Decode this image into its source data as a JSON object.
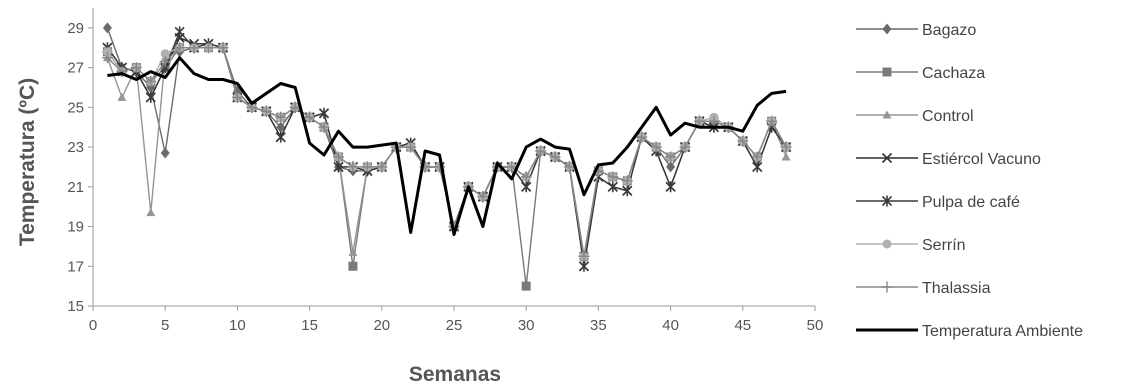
{
  "chart_data": {
    "type": "line",
    "title": "",
    "xlabel": "Semanas",
    "ylabel": "Temperatura (ºC)",
    "xlim": [
      0,
      50
    ],
    "ylim": [
      15,
      30
    ],
    "x_ticks": [
      0,
      5,
      10,
      15,
      20,
      25,
      30,
      35,
      40,
      45,
      50
    ],
    "y_ticks": [
      15,
      17,
      19,
      21,
      23,
      25,
      27,
      29
    ],
    "grid": false,
    "legend_position": "right",
    "x": [
      1,
      2,
      3,
      4,
      5,
      6,
      7,
      8,
      9,
      10,
      11,
      12,
      13,
      14,
      15,
      16,
      17,
      18,
      19,
      20,
      21,
      22,
      23,
      24,
      25,
      26,
      27,
      28,
      29,
      30,
      31,
      32,
      33,
      34,
      35,
      36,
      37,
      38,
      39,
      40,
      41,
      42,
      43,
      44,
      45,
      46,
      47,
      48
    ],
    "series": [
      {
        "name": "Bagazo",
        "marker": "diamond",
        "color": "#6b6b6b",
        "values": [
          29,
          27,
          26.8,
          26,
          22.7,
          27.8,
          28,
          28,
          28,
          25.8,
          25,
          24.8,
          24,
          25,
          24.5,
          24,
          22,
          21.8,
          21.8,
          22,
          23,
          23,
          22,
          22,
          19,
          21,
          20.5,
          22,
          22,
          21.5,
          22.8,
          22.5,
          22,
          17.5,
          21.8,
          21.5,
          21.3,
          23.5,
          23,
          22,
          23,
          24.3,
          24.3,
          24,
          23.3,
          22.5,
          24.3,
          23
        ]
      },
      {
        "name": "Cachaza",
        "marker": "square",
        "color": "#7a7a7a",
        "values": [
          27.8,
          26.8,
          27,
          26.3,
          27,
          28,
          28,
          28,
          28,
          25.5,
          25,
          24.8,
          24.5,
          25,
          24.5,
          24,
          22.5,
          17,
          22,
          22,
          23,
          23,
          22,
          22,
          19,
          21,
          20.5,
          22,
          22,
          16,
          22.8,
          22.5,
          22,
          17.5,
          21.8,
          21.5,
          21.3,
          23.5,
          23,
          22.5,
          23,
          24.3,
          24.3,
          24,
          23.3,
          22.5,
          24.3,
          23
        ]
      },
      {
        "name": "Control",
        "marker": "triangle",
        "color": "#959595",
        "values": [
          27.5,
          25.5,
          27,
          19.7,
          27.5,
          28,
          28,
          28,
          28,
          25.5,
          25,
          24.8,
          24.5,
          25,
          24.5,
          24,
          22.5,
          17.7,
          22,
          22,
          23,
          23,
          22,
          22,
          19,
          21,
          20.5,
          22,
          22,
          21.5,
          22.8,
          22.5,
          22,
          17.5,
          21.8,
          21.5,
          21.3,
          23.5,
          23,
          22.5,
          23,
          24.3,
          24.3,
          24,
          23.3,
          22.5,
          24.3,
          22.5
        ]
      },
      {
        "name": "Estiércol Vacuno",
        "marker": "x",
        "color": "#2f2f2f",
        "values": [
          28,
          27,
          26.8,
          25.5,
          27,
          28.5,
          28.2,
          28.2,
          28,
          25.5,
          25,
          24.8,
          23.5,
          25,
          24.5,
          24.7,
          22,
          22,
          21.8,
          22,
          23,
          23.2,
          22,
          22,
          19,
          21,
          20.5,
          22,
          22,
          21,
          22.8,
          22.5,
          22,
          17,
          21.5,
          21,
          20.8,
          23.5,
          22.8,
          21,
          23,
          24.3,
          24,
          24,
          23.3,
          22,
          24,
          23
        ]
      },
      {
        "name": "Pulpa de café",
        "marker": "star",
        "color": "#3a3a3a",
        "values": [
          28,
          27,
          26.8,
          25.5,
          27,
          28.8,
          28,
          28.2,
          28,
          25.5,
          25,
          24.8,
          23.5,
          25,
          24.5,
          24.7,
          22,
          22,
          21.8,
          22,
          23,
          23.2,
          22,
          22,
          19,
          21,
          20.5,
          22,
          22,
          21,
          22.8,
          22.5,
          22,
          17,
          21.5,
          21,
          20.8,
          23.5,
          22.8,
          21,
          23,
          24.3,
          24,
          24,
          23.3,
          22,
          24,
          23
        ]
      },
      {
        "name": "Serrín",
        "marker": "circle",
        "color": "#b0b0b0",
        "values": [
          27.8,
          26.8,
          27,
          26.3,
          27.7,
          28,
          28,
          28,
          28,
          25.5,
          25,
          24.8,
          24.5,
          25,
          24.5,
          24,
          22.5,
          22,
          22,
          22,
          23,
          23,
          22,
          22,
          19,
          21,
          20.5,
          22,
          22,
          21.5,
          22.8,
          22.5,
          22,
          17.5,
          21.8,
          21.5,
          21.3,
          23.5,
          23,
          22.5,
          23,
          24.3,
          24.5,
          24,
          23.3,
          22.5,
          24.3,
          23
        ]
      },
      {
        "name": "Thalassia",
        "marker": "plus",
        "color": "#888888",
        "values": [
          27.5,
          26.8,
          27,
          26.3,
          27.3,
          28,
          28,
          28,
          28,
          25.5,
          25,
          24.8,
          24.5,
          25,
          24.5,
          24,
          22.5,
          22,
          22,
          22,
          23,
          23,
          22,
          22,
          19,
          21,
          20.5,
          22,
          22,
          21.5,
          22.8,
          22.5,
          22,
          17.5,
          21.8,
          21.5,
          21.3,
          23.5,
          23,
          22.5,
          23,
          24.3,
          24.3,
          24,
          23.3,
          22.5,
          24.3,
          23
        ]
      },
      {
        "name": "Temperatura Ambiente",
        "marker": "none",
        "color": "#000000",
        "line_width": 3,
        "x": [
          1,
          2,
          3,
          4,
          5,
          6,
          7,
          8,
          9,
          10,
          11,
          12,
          13,
          14,
          15,
          16,
          17,
          18,
          19,
          20,
          21,
          22,
          23,
          24,
          25,
          26,
          27,
          28,
          29,
          30,
          31,
          32,
          33,
          34,
          35,
          36,
          37,
          38,
          39,
          40,
          41,
          42,
          43,
          44,
          45,
          46,
          47,
          48
        ],
        "values": [
          26.6,
          26.7,
          26.4,
          26.8,
          26.5,
          27.5,
          26.7,
          26.4,
          26.4,
          26.2,
          25.2,
          25.7,
          26.2,
          26,
          23.2,
          22.6,
          23.8,
          23,
          23,
          23.1,
          23.2,
          18.7,
          22.8,
          22.6,
          18.6,
          21,
          19,
          22.2,
          21.4,
          23,
          23.4,
          23,
          22.9,
          20.6,
          22.1,
          22.2,
          23,
          24,
          25,
          23.6,
          24.2,
          24,
          24,
          24,
          23.8,
          25.1,
          25.7,
          25.8
        ]
      }
    ]
  }
}
